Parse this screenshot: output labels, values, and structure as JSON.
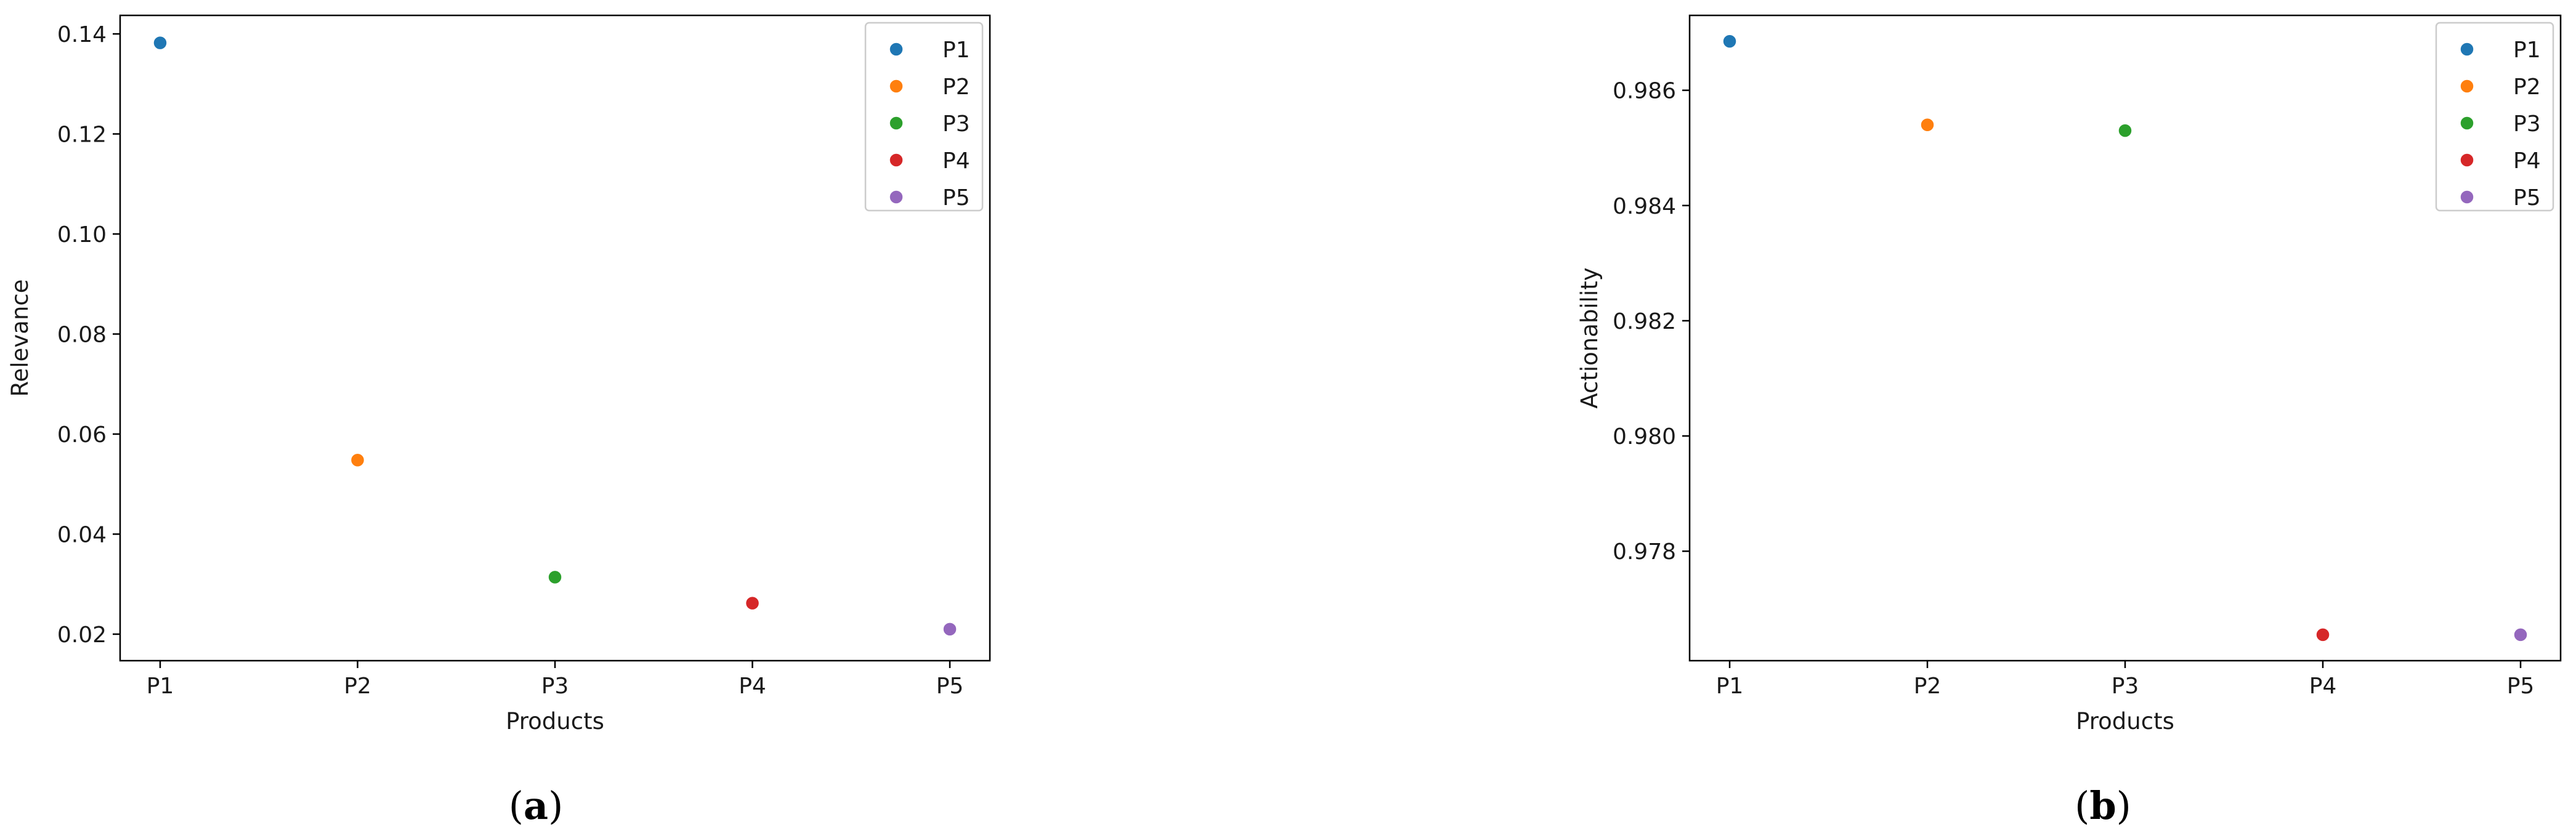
{
  "chart_data": [
    {
      "type": "scatter",
      "caption": "(a)",
      "xlabel": "Products",
      "ylabel": "Relevance",
      "categories": [
        "P1",
        "P2",
        "P3",
        "P4",
        "P5"
      ],
      "yticks": [
        0.02,
        0.04,
        0.06,
        0.08,
        0.1,
        0.12,
        0.14
      ],
      "ytick_labels": [
        "0.02",
        "0.04",
        "0.06",
        "0.08",
        "0.10",
        "0.12",
        "0.14"
      ],
      "ylim": [
        0.0147,
        0.1437
      ],
      "series": [
        {
          "name": "P1",
          "x": "P1",
          "y": 0.1382,
          "color": "#1f77b4"
        },
        {
          "name": "P2",
          "x": "P2",
          "y": 0.0548,
          "color": "#ff7f0e"
        },
        {
          "name": "P3",
          "x": "P3",
          "y": 0.0314,
          "color": "#2ca02c"
        },
        {
          "name": "P4",
          "x": "P4",
          "y": 0.0262,
          "color": "#d62728"
        },
        {
          "name": "P5",
          "x": "P5",
          "y": 0.021,
          "color": "#9467bd"
        }
      ],
      "legend_position": "top-right",
      "grid": false
    },
    {
      "type": "scatter",
      "caption": "(b)",
      "xlabel": "Products",
      "ylabel": "Actionability",
      "categories": [
        "P1",
        "P2",
        "P3",
        "P4",
        "P5"
      ],
      "yticks": [
        0.978,
        0.98,
        0.982,
        0.984,
        0.986
      ],
      "ytick_labels": [
        "0.978",
        "0.980",
        "0.982",
        "0.984",
        "0.986"
      ],
      "ylim": [
        0.9761,
        0.9873
      ],
      "series": [
        {
          "name": "P1",
          "x": "P1",
          "y": 0.98685,
          "color": "#1f77b4"
        },
        {
          "name": "P2",
          "x": "P2",
          "y": 0.9854,
          "color": "#ff7f0e"
        },
        {
          "name": "P3",
          "x": "P3",
          "y": 0.9853,
          "color": "#2ca02c"
        },
        {
          "name": "P4",
          "x": "P4",
          "y": 0.97655,
          "color": "#d62728"
        },
        {
          "name": "P5",
          "x": "P5",
          "y": 0.97655,
          "color": "#9467bd"
        }
      ],
      "legend_position": "top-right",
      "grid": false
    }
  ]
}
